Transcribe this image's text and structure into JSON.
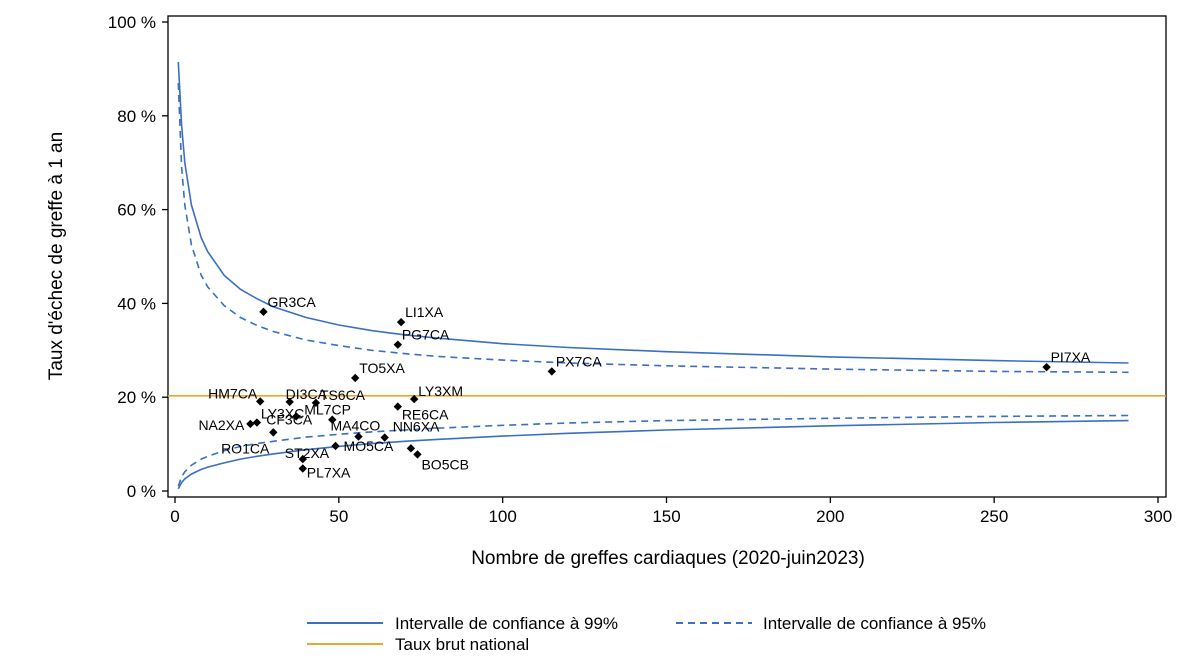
{
  "chart_data": {
    "type": "scatter",
    "title": "",
    "xlabel": "Nombre de greffes cardiaques (2020-juin2023)",
    "ylabel": "Taux d'échec de greffe à 1 an",
    "xlim": [
      0,
      300
    ],
    "ylim": [
      0,
      100
    ],
    "x_ticks": [
      0,
      50,
      100,
      150,
      200,
      250,
      300
    ],
    "y_ticks": [
      0,
      20,
      40,
      60,
      80,
      100
    ],
    "y_tick_labels": [
      "0 %",
      "20 %",
      "40 %",
      "60 %",
      "80 %",
      "100 %"
    ],
    "national_rate": 20.3,
    "points": [
      {
        "label": "GR3CA",
        "x": 27,
        "y": 38.2
      },
      {
        "label": "LI1XA",
        "x": 69,
        "y": 36.0
      },
      {
        "label": "PG7CA",
        "x": 68,
        "y": 31.2
      },
      {
        "label": "PX7CA",
        "x": 115,
        "y": 25.5
      },
      {
        "label": "PI7XA",
        "x": 266,
        "y": 26.4
      },
      {
        "label": "TO5XA",
        "x": 55,
        "y": 24.1
      },
      {
        "label": "LY3XM",
        "x": 73,
        "y": 19.6
      },
      {
        "label": "HM7CA",
        "x": 26,
        "y": 19.1
      },
      {
        "label": "DI3CA",
        "x": 35,
        "y": 19.0
      },
      {
        "label": "TS6CA",
        "x": 43,
        "y": 18.8
      },
      {
        "label": "RE6CA",
        "x": 68,
        "y": 18.0
      },
      {
        "label": "ML7CP",
        "x": 37,
        "y": 15.9
      },
      {
        "label": "LY3XC",
        "x": 25,
        "y": 14.6
      },
      {
        "label": "NA2XA",
        "x": 23,
        "y": 14.3
      },
      {
        "label": "CF3CA",
        "x": 48,
        "y": 15.2
      },
      {
        "label": "RO1CA",
        "x": 30,
        "y": 12.5
      },
      {
        "label": "MA4CO",
        "x": 56,
        "y": 11.6
      },
      {
        "label": "NN6XA",
        "x": 64,
        "y": 11.4
      },
      {
        "label": "MO5CA",
        "x": 49,
        "y": 9.6
      },
      {
        "label": "ST2XA",
        "x": 39,
        "y": 6.8
      },
      {
        "label": "BO5CB",
        "x": 72,
        "y": 9.1
      },
      {
        "label": "PL7XA",
        "x": 39,
        "y": 4.8
      },
      {
        "label": "BO5CB",
        "x": 74,
        "y": 7.8
      }
    ],
    "series": [
      {
        "name": "Intervalle de confiance à 99%",
        "style": "solid",
        "color": "#3a6fc4",
        "upper": {
          "x": [
            1,
            2,
            3,
            5,
            8,
            10,
            15,
            20,
            25,
            30,
            40,
            50,
            60,
            70,
            80,
            100,
            120,
            150,
            200,
            250,
            291
          ],
          "y": [
            91.5,
            78,
            70,
            61,
            54,
            51,
            46,
            43,
            41,
            39.3,
            37,
            35.4,
            34.2,
            33.3,
            32.6,
            31.4,
            30.6,
            29.7,
            28.6,
            27.8,
            27.3
          ]
        },
        "lower": {
          "x": [
            1,
            2,
            3,
            5,
            8,
            10,
            15,
            20,
            25,
            30,
            40,
            50,
            60,
            70,
            80,
            100,
            120,
            150,
            200,
            250,
            291
          ],
          "y": [
            0.5,
            1.8,
            2.6,
            3.6,
            4.6,
            5.1,
            6.0,
            6.8,
            7.4,
            7.9,
            8.8,
            9.5,
            10.1,
            10.6,
            11.0,
            11.7,
            12.3,
            13.0,
            13.9,
            14.6,
            15.0
          ]
        }
      },
      {
        "name": "Intervalle de confiance à 95%",
        "style": "dashed",
        "color": "#3a6fc4",
        "upper": {
          "x": [
            1,
            2,
            3,
            5,
            8,
            10,
            15,
            20,
            25,
            30,
            40,
            50,
            60,
            70,
            80,
            100,
            120,
            150,
            200,
            250,
            291
          ],
          "y": [
            87,
            69,
            61,
            52.5,
            46,
            43.5,
            39.5,
            37,
            35.3,
            34,
            32.2,
            31,
            30,
            29.3,
            28.7,
            27.9,
            27.3,
            26.7,
            26.0,
            25.5,
            25.3
          ]
        },
        "lower": {
          "x": [
            1,
            2,
            3,
            5,
            8,
            10,
            15,
            20,
            25,
            30,
            40,
            50,
            60,
            70,
            80,
            100,
            120,
            150,
            200,
            250,
            291
          ],
          "y": [
            1.0,
            3.0,
            4.1,
            5.5,
            6.8,
            7.4,
            8.6,
            9.5,
            10.1,
            10.6,
            11.5,
            12.1,
            12.6,
            13.0,
            13.4,
            14.0,
            14.5,
            15.0,
            15.5,
            15.9,
            16.1
          ]
        }
      },
      {
        "name": "Taux brut national",
        "style": "solid",
        "color": "#e8a830"
      }
    ],
    "legend": {
      "placement": "bottom",
      "items": [
        "Intervalle de confiance à 99%",
        "Intervalle de confiance à 95%",
        "Taux brut national"
      ]
    }
  }
}
